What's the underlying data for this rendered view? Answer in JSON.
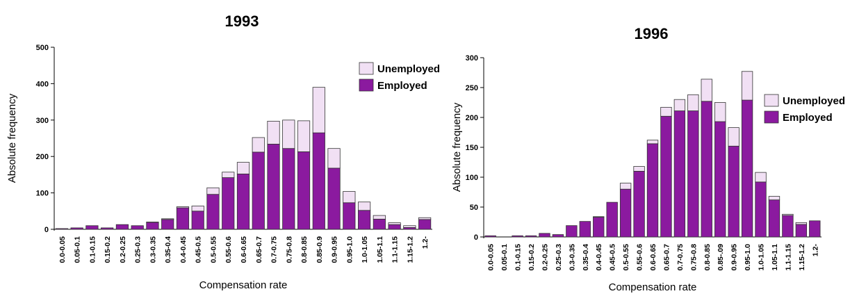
{
  "colors": {
    "employed": "#8b1a9f",
    "unemployed": "#f1e0f4",
    "stroke": "#333333"
  },
  "chart_data": [
    {
      "type": "bar",
      "stacked": true,
      "title": "1993",
      "xlabel": "Compensation rate",
      "ylabel": "Absolute frequency",
      "ylim": [
        0,
        500
      ],
      "yticks": [
        0,
        100,
        200,
        300,
        400,
        500
      ],
      "grid": false,
      "legend_position": "top-right",
      "categories": [
        "0.0-0.05",
        "0.05-0.1",
        "0.1-0.15",
        "0.15-0.2",
        "0.2-0.25",
        "0.25-0.3",
        "0.3-0.35",
        "0.35-0.4",
        "0.4-0.45",
        "0.45-0.5",
        "0.5-0.55",
        "0.55-0.6",
        "0.6-0.65",
        "0.65-0.7",
        "0.7-0.75",
        "0.75-0.8",
        "0.8-0.85",
        "0.85-0.9",
        "0.9-0.95",
        "0.95-1.0",
        "1.0-1.05",
        "1.05-1.1",
        "1.1-1.15",
        "1.15-1.2",
        "1.2-"
      ],
      "series": [
        {
          "name": "Employed",
          "values": [
            2,
            4,
            10,
            4,
            13,
            10,
            19,
            27,
            59,
            50,
            96,
            142,
            152,
            212,
            234,
            222,
            213,
            265,
            168,
            73,
            52,
            28,
            13,
            5,
            27
          ]
        },
        {
          "name": "Unemployed",
          "values": [
            0,
            0,
            0,
            0,
            0,
            0,
            1,
            2,
            3,
            14,
            18,
            15,
            32,
            40,
            63,
            78,
            85,
            125,
            54,
            31,
            23,
            10,
            5,
            5,
            5
          ]
        }
      ]
    },
    {
      "type": "bar",
      "stacked": true,
      "title": "1996",
      "xlabel": "Compensation rate",
      "ylabel": "Absolute frequency",
      "ylim": [
        0,
        300
      ],
      "yticks": [
        0,
        50,
        100,
        150,
        200,
        250,
        300
      ],
      "grid": false,
      "legend_position": "right",
      "categories": [
        "0.0-0.05",
        "0.05-0.1",
        "0.1-0.15",
        "0.15-0.2",
        "0.2-0.25",
        "0.25-0.3",
        "0.3-0.35",
        "0.35-0.4",
        "0.4-0.45",
        "0.45-0.5",
        "0.5-0.55",
        "0.55-0.6",
        "0.6-0.65",
        "0.65-0.7",
        "0.7-0.75",
        "0.75-0.8",
        "0.8-0.85",
        "0.85-.09",
        "0.9-0.95",
        "0.95-1.0",
        "1.0-1.05",
        "1.05-1.1",
        "1.1-1.15",
        "1.15-1.2",
        "1.2-"
      ],
      "series": [
        {
          "name": "Employed",
          "values": [
            2,
            0,
            2,
            2,
            6,
            4,
            19,
            26,
            33,
            58,
            80,
            110,
            156,
            202,
            211,
            211,
            227,
            193,
            152,
            229,
            92,
            62,
            36,
            21,
            27
          ]
        },
        {
          "name": "Unemployed",
          "values": [
            0,
            0,
            0,
            0,
            0,
            0,
            0,
            0,
            1,
            0,
            10,
            8,
            6,
            15,
            19,
            27,
            37,
            32,
            31,
            48,
            16,
            6,
            2,
            3,
            0
          ]
        }
      ]
    }
  ]
}
